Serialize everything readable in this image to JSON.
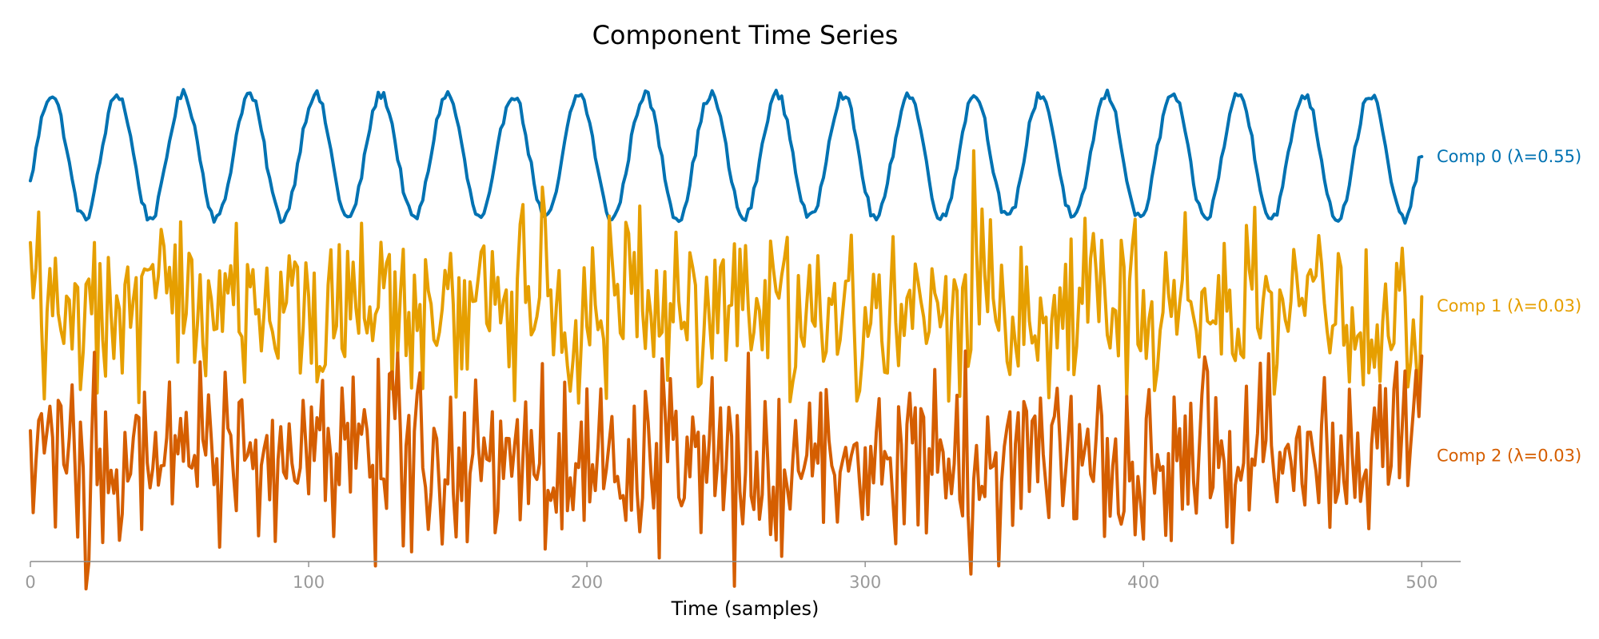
{
  "chart_data": {
    "type": "line",
    "title": "Component Time Series",
    "xlabel": "Time (samples)",
    "ylabel": "",
    "xlim": [
      0,
      514
    ],
    "x_ticks": [
      0,
      100,
      200,
      300,
      400,
      500
    ],
    "x_tick_labels": [
      "0",
      "100",
      "200",
      "300",
      "400",
      "500"
    ],
    "y_axis_visible": false,
    "grid": false,
    "legend": "inline-right",
    "x": {
      "start": 0,
      "end": 500,
      "count": 501
    },
    "series": [
      {
        "name": "Comp 0 (λ=0.55)",
        "color": "#0072B2",
        "offset": 0,
        "kind": "sinusoid",
        "baseline": 0.0,
        "amplitude": 1.0,
        "period_samples": 23.7,
        "phase_deg": -25,
        "noise_amplitude": 0.08,
        "last_value": 0.0
      },
      {
        "name": "Comp 1 (λ=0.03)",
        "color": "#E69F00",
        "offset": -2.4,
        "kind": "noise",
        "baseline": 0.0,
        "amplitude": 1.0,
        "range": [
          -1.6,
          2.5
        ],
        "last_value": 0.15
      },
      {
        "name": "Comp 2 (λ=0.03)",
        "color": "#D55E00",
        "offset": -4.8,
        "kind": "noise",
        "baseline": 0.0,
        "amplitude": 1.0,
        "range": [
          -2.5,
          1.7
        ],
        "last_value": 1.6
      }
    ]
  }
}
